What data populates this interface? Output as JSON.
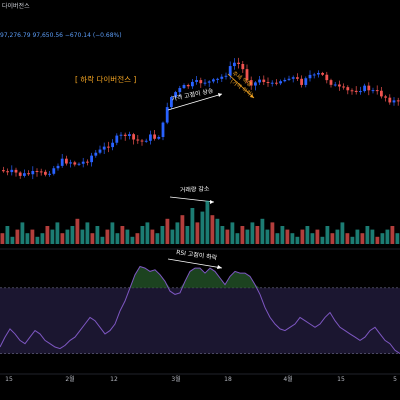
{
  "header": {
    "title": "다이버전스",
    "ohlc_text": "97,276.79  97,650.56  −670.14 (−0.68%)"
  },
  "colors": {
    "background": "#000000",
    "up": "#26a69a",
    "down": "#ef5350",
    "accent": "#2962ff",
    "orange": "#f5a623",
    "rsi": "#7e57c2",
    "rsi_band": "#1b1630",
    "rsi_fill": "#1f4a24"
  },
  "chart_data": [
    {
      "type": "candlestick",
      "annotations": {
        "title": "[ 하락 다이버전스 ]",
        "price_higher_high": "가격 고점이 상승",
        "false_breakout": [
          "추세 역행",
          "(가격 하락)"
        ],
        "volume_decrease": "거래량 감소"
      },
      "x_tick_labels": [
        "15",
        "2월",
        "12",
        "3월",
        "18",
        "4월",
        "15",
        "5"
      ],
      "price_path": [
        [
          0,
          0.73
        ],
        [
          6,
          0.75
        ],
        [
          12,
          0.74
        ],
        [
          20,
          0.76
        ],
        [
          28,
          0.75
        ],
        [
          36,
          0.75
        ],
        [
          44,
          0.75
        ],
        [
          52,
          0.72
        ],
        [
          60,
          0.68
        ],
        [
          68,
          0.68
        ],
        [
          76,
          0.7
        ],
        [
          84,
          0.68
        ],
        [
          92,
          0.64
        ],
        [
          100,
          0.62
        ],
        [
          108,
          0.58
        ],
        [
          116,
          0.55
        ],
        [
          124,
          0.53
        ],
        [
          132,
          0.56
        ],
        [
          140,
          0.57
        ],
        [
          148,
          0.54
        ],
        [
          154,
          0.55
        ],
        [
          160,
          0.52
        ],
        [
          166,
          0.36
        ],
        [
          172,
          0.3
        ],
        [
          178,
          0.28
        ],
        [
          184,
          0.26
        ],
        [
          190,
          0.25
        ],
        [
          196,
          0.24
        ],
        [
          202,
          0.23
        ],
        [
          210,
          0.24
        ],
        [
          218,
          0.22
        ],
        [
          226,
          0.18
        ],
        [
          234,
          0.12
        ],
        [
          240,
          0.15
        ],
        [
          246,
          0.22
        ],
        [
          252,
          0.25
        ],
        [
          258,
          0.22
        ],
        [
          264,
          0.23
        ],
        [
          270,
          0.26
        ],
        [
          276,
          0.22
        ],
        [
          282,
          0.23
        ],
        [
          288,
          0.2
        ],
        [
          294,
          0.22
        ],
        [
          300,
          0.24
        ],
        [
          306,
          0.19
        ],
        [
          312,
          0.21
        ],
        [
          318,
          0.19
        ],
        [
          324,
          0.21
        ],
        [
          330,
          0.24
        ],
        [
          336,
          0.27
        ],
        [
          342,
          0.28
        ],
        [
          348,
          0.29
        ],
        [
          354,
          0.28
        ],
        [
          360,
          0.27
        ],
        [
          366,
          0.27
        ],
        [
          372,
          0.29
        ],
        [
          378,
          0.3
        ],
        [
          384,
          0.32
        ],
        [
          390,
          0.34
        ],
        [
          396,
          0.35
        ],
        [
          400,
          0.37
        ]
      ]
    },
    {
      "type": "bar",
      "series": [
        {
          "values": [
            3,
            5,
            2,
            4,
            6,
            3,
            4,
            2,
            3,
            5,
            4,
            6,
            3,
            4,
            5,
            7,
            4,
            6,
            3,
            5,
            2,
            4,
            6,
            3,
            5,
            4,
            2,
            3,
            5,
            6,
            4,
            3,
            5,
            7,
            4,
            6,
            8,
            5,
            10,
            6,
            9,
            12,
            8,
            7,
            5,
            4,
            6,
            3,
            5,
            4,
            6,
            5,
            7,
            4,
            6,
            3,
            5,
            4,
            3,
            2,
            4,
            5,
            3,
            4,
            2,
            5,
            3,
            4,
            6,
            3,
            2,
            4,
            3,
            5,
            4,
            2,
            3,
            4,
            5,
            3
          ]
        }
      ]
    },
    {
      "type": "line",
      "annotations": {
        "rsi_label": "RSI 고점이 하락"
      },
      "bands": {
        "upper": 70,
        "lower": 30
      },
      "ylim": [
        20,
        90
      ],
      "values": [
        34,
        40,
        45,
        42,
        38,
        36,
        40,
        44,
        42,
        38,
        36,
        34,
        33,
        35,
        38,
        40,
        44,
        48,
        52,
        50,
        46,
        42,
        44,
        48,
        56,
        62,
        70,
        78,
        83,
        82,
        80,
        81,
        78,
        74,
        68,
        66,
        67,
        74,
        80,
        82,
        82,
        79,
        82,
        80,
        76,
        72,
        77,
        80,
        79,
        79,
        77,
        72,
        66,
        58,
        52,
        48,
        45,
        44,
        46,
        48,
        52,
        50,
        48,
        46,
        48,
        52,
        55,
        50,
        46,
        44,
        42,
        40,
        38,
        40,
        44,
        46,
        42,
        38,
        36,
        32,
        30
      ]
    }
  ]
}
